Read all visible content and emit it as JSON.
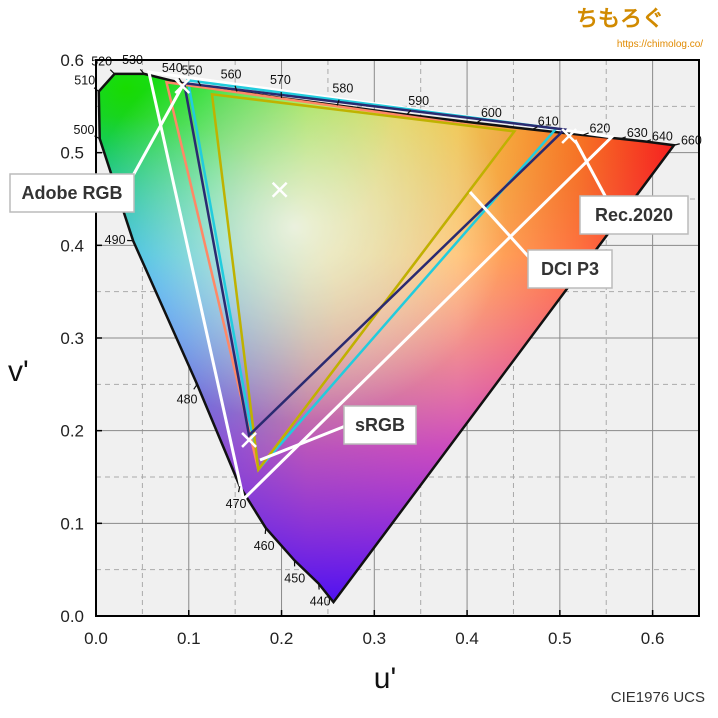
{
  "brand": {
    "title": "ちもろぐ",
    "url": "https://chimolog.co/"
  },
  "caption": "CIE1976 UCS",
  "chart_data": {
    "type": "scatter",
    "xlabel": "u'",
    "ylabel": "v'",
    "xlim": [
      0.0,
      0.65
    ],
    "ylim": [
      0.0,
      0.6
    ],
    "x_ticks": [
      "0.0",
      "0.1",
      "0.2",
      "0.3",
      "0.4",
      "0.5",
      "0.6"
    ],
    "y_ticks": [
      "0.0",
      "0.1",
      "0.2",
      "0.3",
      "0.4",
      "0.5",
      "0.6"
    ],
    "grid": true,
    "spectral_locus": [
      {
        "u": 0.256,
        "v": 0.015,
        "label": ""
      },
      {
        "u": 0.24,
        "v": 0.035,
        "label": "440"
      },
      {
        "u": 0.214,
        "v": 0.06,
        "label": "450"
      },
      {
        "u": 0.183,
        "v": 0.095,
        "label": "460"
      },
      {
        "u": 0.155,
        "v": 0.14,
        "label": "470"
      },
      {
        "u": 0.109,
        "v": 0.25,
        "label": "480"
      },
      {
        "u": 0.04,
        "v": 0.405,
        "label": "490"
      },
      {
        "u": 0.004,
        "v": 0.515,
        "label": "500"
      },
      {
        "u": 0.003,
        "v": 0.566,
        "label": "510"
      },
      {
        "u": 0.02,
        "v": 0.585,
        "label": "520"
      },
      {
        "u": 0.052,
        "v": 0.585,
        "label": "530"
      },
      {
        "u": 0.093,
        "v": 0.575,
        "label": "540"
      },
      {
        "u": 0.113,
        "v": 0.572,
        "label": "550"
      },
      {
        "u": 0.152,
        "v": 0.566,
        "label": "560"
      },
      {
        "u": 0.2,
        "v": 0.559,
        "label": "570"
      },
      {
        "u": 0.26,
        "v": 0.551,
        "label": "580"
      },
      {
        "u": 0.335,
        "v": 0.541,
        "label": "590"
      },
      {
        "u": 0.41,
        "v": 0.532,
        "label": "600"
      },
      {
        "u": 0.47,
        "v": 0.525,
        "label": "610"
      },
      {
        "u": 0.525,
        "v": 0.519,
        "label": "620"
      },
      {
        "u": 0.565,
        "v": 0.515,
        "label": "630"
      },
      {
        "u": 0.592,
        "v": 0.512,
        "label": "640"
      },
      {
        "u": 0.623,
        "v": 0.508,
        "label": "660"
      }
    ],
    "gamuts": [
      {
        "name": "Rec.2020",
        "color": "#ffffff",
        "points": [
          [
            0.556,
            0.517
          ],
          [
            0.057,
            0.587
          ],
          [
            0.159,
            0.126
          ]
        ]
      },
      {
        "name": "DCI P3",
        "color": "#22ccdd",
        "points": [
          [
            0.496,
            0.526
          ],
          [
            0.099,
            0.578
          ],
          [
            0.175,
            0.158
          ]
        ]
      },
      {
        "name": "Adobe RGB",
        "color": "#ff8866",
        "points": [
          [
            0.451,
            0.523
          ],
          [
            0.076,
            0.576
          ],
          [
            0.175,
            0.158
          ]
        ]
      },
      {
        "name": "sRGB",
        "color": "#bfb200",
        "points": [
          [
            0.451,
            0.523
          ],
          [
            0.125,
            0.563
          ],
          [
            0.175,
            0.158
          ]
        ]
      },
      {
        "name": "",
        "color": "#2a2a70",
        "points": [
          [
            0.505,
            0.525
          ],
          [
            0.095,
            0.575
          ],
          [
            0.165,
            0.195
          ]
        ]
      }
    ],
    "markers": [
      {
        "u": 0.198,
        "v": 0.46
      },
      {
        "u": 0.51,
        "v": 0.518
      },
      {
        "u": 0.165,
        "v": 0.19
      },
      {
        "u": 0.093,
        "v": 0.572
      }
    ]
  },
  "labels": {
    "adobe_rgb": "Adobe RGB",
    "rec2020": "Rec.2020",
    "dci_p3": "DCI P3",
    "srgb": "sRGB"
  }
}
